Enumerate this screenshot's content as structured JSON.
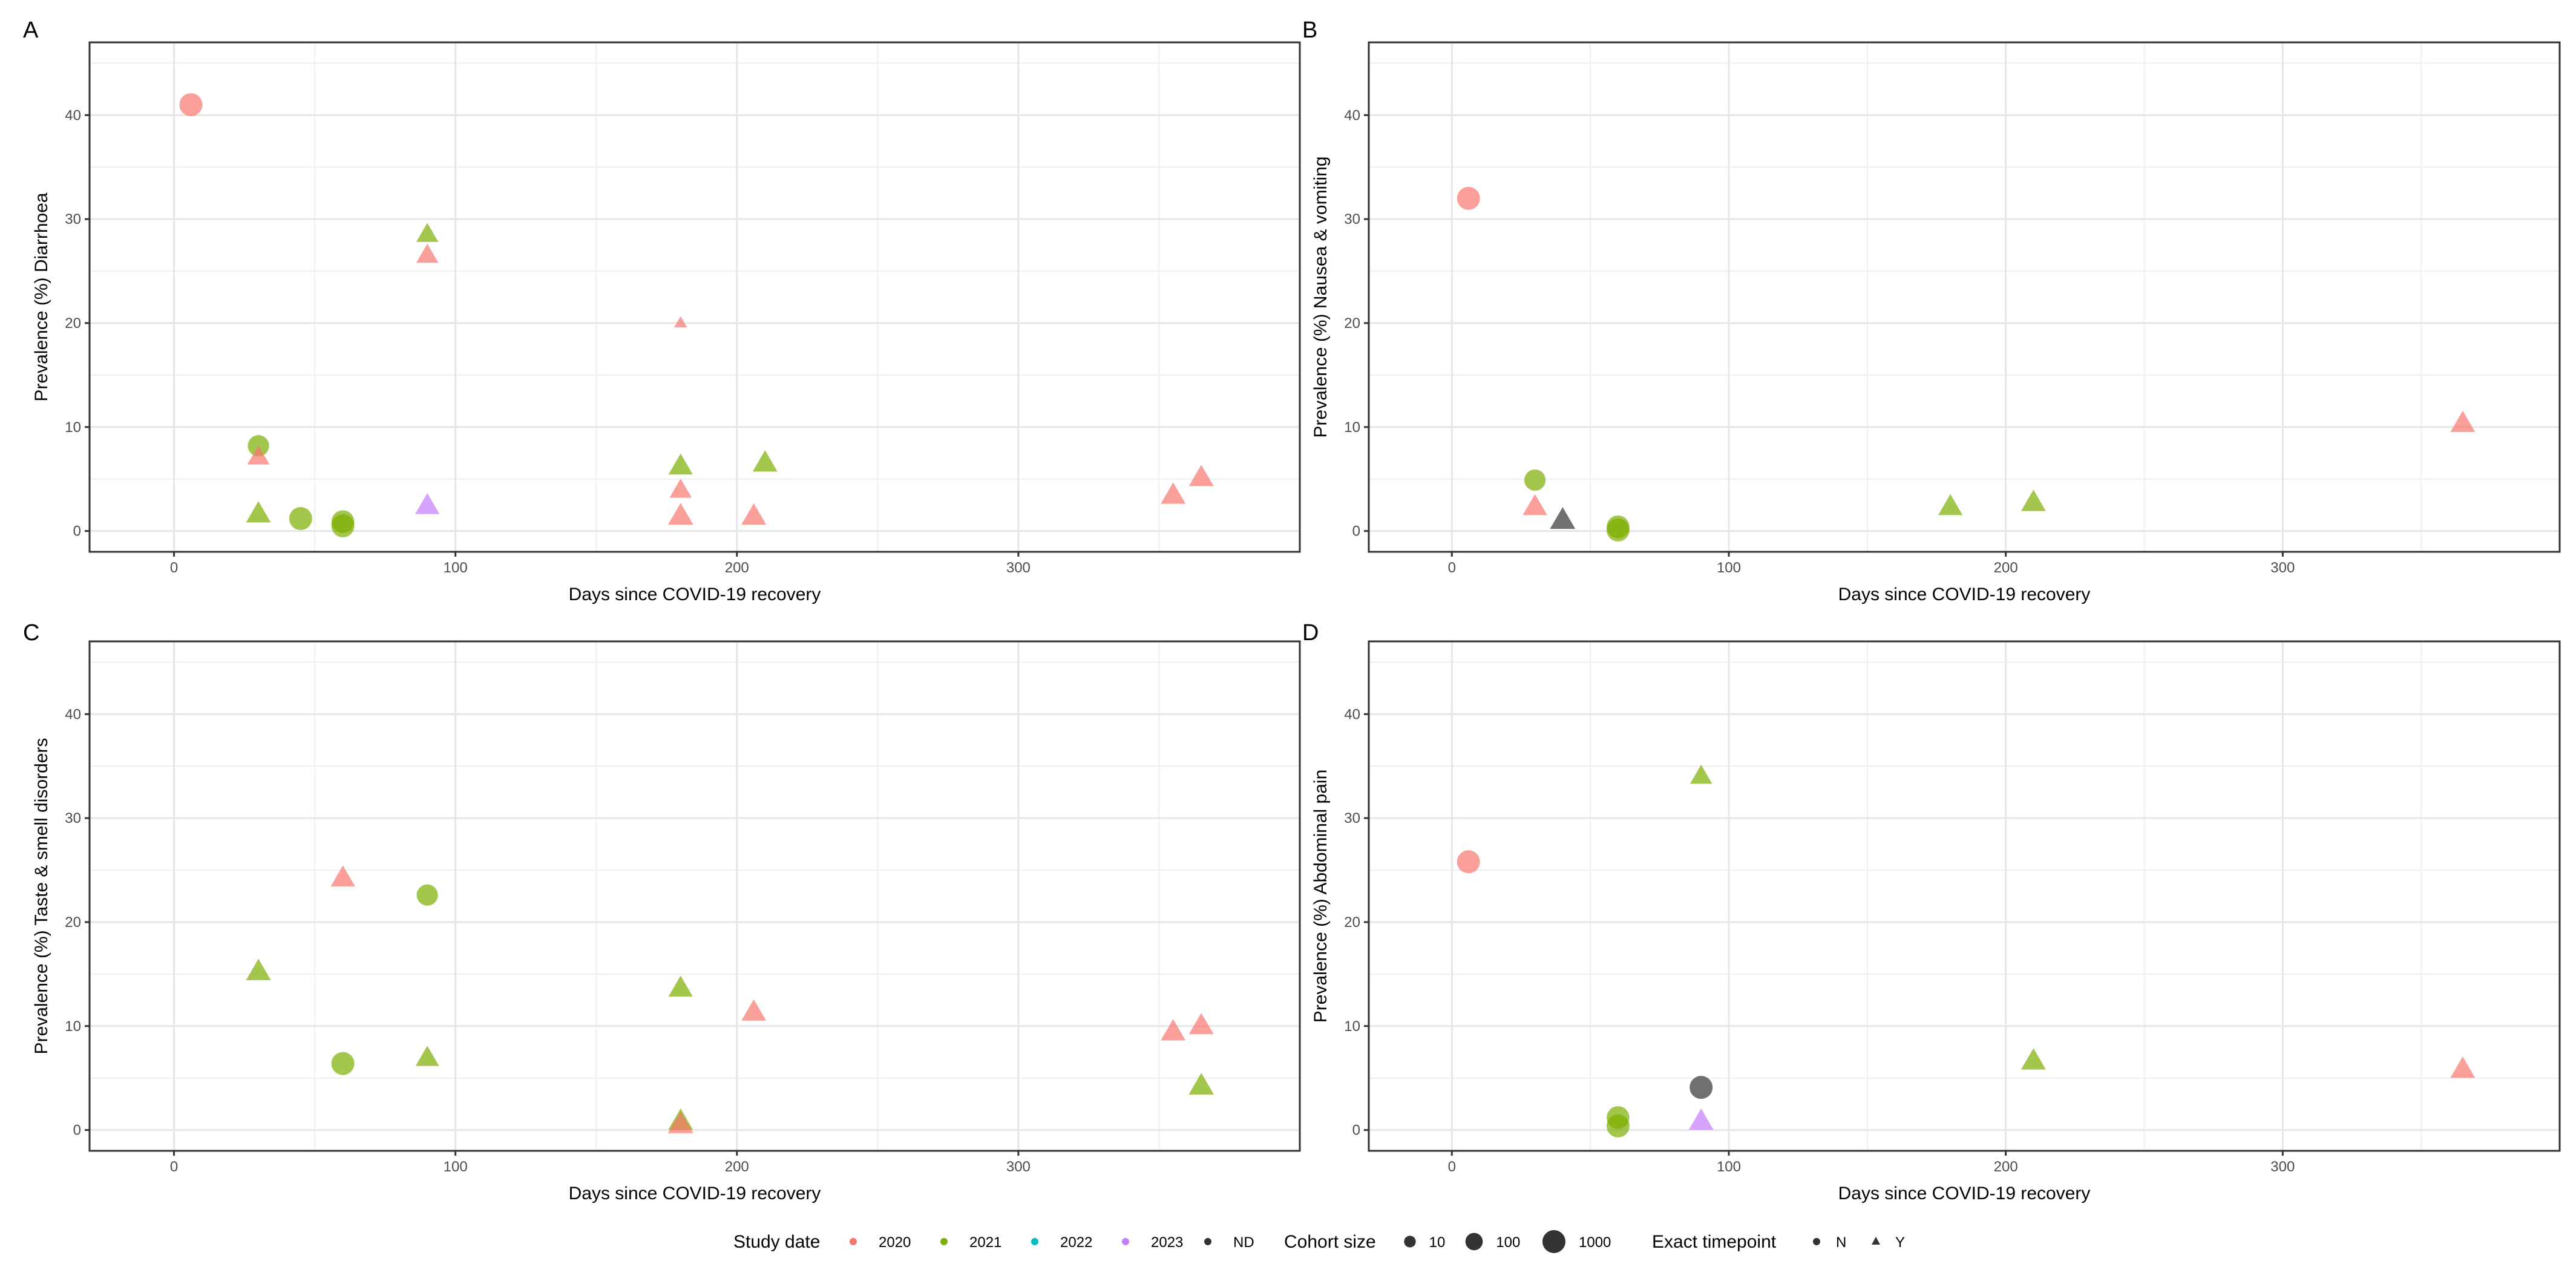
{
  "chart_data": [
    {
      "type": "scatter",
      "panel": "A",
      "xlabel": "Days since COVID-19 recovery",
      "ylabel": "Prevalence (%) Diarrhoea",
      "xlim": [
        -30,
        400
      ],
      "ylim": [
        -2,
        47
      ],
      "xticks": [
        0,
        100,
        200,
        300
      ],
      "yticks": [
        0,
        10,
        20,
        30,
        40
      ],
      "points": [
        {
          "x": 6,
          "y": 41.0,
          "year": "2020",
          "size": 1000,
          "exact": "N"
        },
        {
          "x": 30,
          "y": 8.2,
          "year": "2021",
          "size": 500,
          "exact": "N"
        },
        {
          "x": 30,
          "y": 7.1,
          "year": "2020",
          "size": 300,
          "exact": "Y"
        },
        {
          "x": 30,
          "y": 1.6,
          "year": "2021",
          "size": 800,
          "exact": "Y"
        },
        {
          "x": 45,
          "y": 1.2,
          "year": "2021",
          "size": 1000,
          "exact": "N"
        },
        {
          "x": 60,
          "y": 0.9,
          "year": "2021",
          "size": 900,
          "exact": "N"
        },
        {
          "x": 60,
          "y": 0.5,
          "year": "2021",
          "size": 1000,
          "exact": "N"
        },
        {
          "x": 90,
          "y": 28.5,
          "year": "2021",
          "size": 300,
          "exact": "Y"
        },
        {
          "x": 90,
          "y": 26.5,
          "year": "2020",
          "size": 300,
          "exact": "Y"
        },
        {
          "x": 90,
          "y": 2.4,
          "year": "2023",
          "size": 700,
          "exact": "Y"
        },
        {
          "x": 180,
          "y": 20.0,
          "year": "2020",
          "size": 10,
          "exact": "Y"
        },
        {
          "x": 180,
          "y": 6.2,
          "year": "2021",
          "size": 700,
          "exact": "Y"
        },
        {
          "x": 180,
          "y": 3.9,
          "year": "2020",
          "size": 300,
          "exact": "Y"
        },
        {
          "x": 180,
          "y": 1.4,
          "year": "2020",
          "size": 1000,
          "exact": "Y"
        },
        {
          "x": 206,
          "y": 1.4,
          "year": "2020",
          "size": 800,
          "exact": "Y"
        },
        {
          "x": 210,
          "y": 6.5,
          "year": "2021",
          "size": 800,
          "exact": "Y"
        },
        {
          "x": 355,
          "y": 3.4,
          "year": "2020",
          "size": 800,
          "exact": "Y"
        },
        {
          "x": 365,
          "y": 5.1,
          "year": "2020",
          "size": 800,
          "exact": "Y"
        }
      ]
    },
    {
      "type": "scatter",
      "panel": "B",
      "xlabel": "Days since COVID-19 recovery",
      "ylabel": "Prevalence (%) Nausea & vomiting",
      "xlim": [
        -30,
        400
      ],
      "ylim": [
        -2,
        47
      ],
      "xticks": [
        0,
        100,
        200,
        300
      ],
      "yticks": [
        0,
        10,
        20,
        30,
        40
      ],
      "points": [
        {
          "x": 6,
          "y": 32.0,
          "year": "2020",
          "size": 1000,
          "exact": "N"
        },
        {
          "x": 30,
          "y": 4.9,
          "year": "2021",
          "size": 500,
          "exact": "N"
        },
        {
          "x": 30,
          "y": 2.3,
          "year": "2020",
          "size": 700,
          "exact": "Y"
        },
        {
          "x": 40,
          "y": 1.0,
          "year": "ND",
          "size": 1000,
          "exact": "Y"
        },
        {
          "x": 60,
          "y": 0.4,
          "year": "2021",
          "size": 900,
          "exact": "N"
        },
        {
          "x": 60,
          "y": 0.1,
          "year": "2021",
          "size": 1000,
          "exact": "N"
        },
        {
          "x": 180,
          "y": 2.3,
          "year": "2021",
          "size": 700,
          "exact": "Y"
        },
        {
          "x": 210,
          "y": 2.7,
          "year": "2021",
          "size": 800,
          "exact": "Y"
        },
        {
          "x": 365,
          "y": 10.3,
          "year": "2020",
          "size": 800,
          "exact": "Y"
        }
      ]
    },
    {
      "type": "scatter",
      "panel": "C",
      "xlabel": "Days since COVID-19 recovery",
      "ylabel": "Prevalence (%) Taste & smell disorders",
      "xlim": [
        -30,
        400
      ],
      "ylim": [
        -2,
        47
      ],
      "xticks": [
        0,
        100,
        200,
        300
      ],
      "yticks": [
        0,
        10,
        20,
        30,
        40
      ],
      "points": [
        {
          "x": 30,
          "y": 15.2,
          "year": "2021",
          "size": 800,
          "exact": "Y"
        },
        {
          "x": 60,
          "y": 24.2,
          "year": "2020",
          "size": 700,
          "exact": "Y"
        },
        {
          "x": 60,
          "y": 6.4,
          "year": "2021",
          "size": 1000,
          "exact": "N"
        },
        {
          "x": 90,
          "y": 22.6,
          "year": "2021",
          "size": 500,
          "exact": "N"
        },
        {
          "x": 90,
          "y": 6.9,
          "year": "2021",
          "size": 500,
          "exact": "Y"
        },
        {
          "x": 180,
          "y": 13.6,
          "year": "2021",
          "size": 700,
          "exact": "Y"
        },
        {
          "x": 180,
          "y": 0.8,
          "year": "2021",
          "size": 800,
          "exact": "Y"
        },
        {
          "x": 180,
          "y": 0.5,
          "year": "2020",
          "size": 1000,
          "exact": "Y"
        },
        {
          "x": 206,
          "y": 11.3,
          "year": "2020",
          "size": 800,
          "exact": "Y"
        },
        {
          "x": 355,
          "y": 9.4,
          "year": "2020",
          "size": 800,
          "exact": "Y"
        },
        {
          "x": 365,
          "y": 10.0,
          "year": "2020",
          "size": 800,
          "exact": "Y"
        },
        {
          "x": 365,
          "y": 4.2,
          "year": "2021",
          "size": 1000,
          "exact": "Y"
        }
      ]
    },
    {
      "type": "scatter",
      "panel": "D",
      "xlabel": "Days since COVID-19 recovery",
      "ylabel": "Prevalence (%) Abdominal pain",
      "xlim": [
        -30,
        400
      ],
      "ylim": [
        -2,
        47
      ],
      "xticks": [
        0,
        100,
        200,
        300
      ],
      "yticks": [
        0,
        10,
        20,
        30,
        40
      ],
      "points": [
        {
          "x": 6,
          "y": 25.8,
          "year": "2020",
          "size": 1000,
          "exact": "N"
        },
        {
          "x": 60,
          "y": 1.2,
          "year": "2021",
          "size": 900,
          "exact": "N"
        },
        {
          "x": 60,
          "y": 0.4,
          "year": "2021",
          "size": 1000,
          "exact": "N"
        },
        {
          "x": 90,
          "y": 34.0,
          "year": "2021",
          "size": 300,
          "exact": "Y"
        },
        {
          "x": 90,
          "y": 4.1,
          "year": "ND",
          "size": 1000,
          "exact": "N"
        },
        {
          "x": 90,
          "y": 0.8,
          "year": "2023",
          "size": 800,
          "exact": "Y"
        },
        {
          "x": 210,
          "y": 6.6,
          "year": "2021",
          "size": 800,
          "exact": "Y"
        },
        {
          "x": 365,
          "y": 5.8,
          "year": "2020",
          "size": 800,
          "exact": "Y"
        }
      ]
    }
  ],
  "legend": {
    "study_date": {
      "title": "Study date",
      "items": [
        {
          "label": "2020",
          "color": "#F8766D"
        },
        {
          "label": "2021",
          "color": "#7CAE00"
        },
        {
          "label": "2022",
          "color": "#00BFC4"
        },
        {
          "label": "2023",
          "color": "#C77CFF"
        },
        {
          "label": "ND",
          "color": "#333333"
        }
      ]
    },
    "cohort_size": {
      "title": "Cohort size",
      "items": [
        {
          "label": "10",
          "value": 10
        },
        {
          "label": "100",
          "value": 100
        },
        {
          "label": "1000",
          "value": 1000
        }
      ]
    },
    "exact_timepoint": {
      "title": "Exact timepoint",
      "items": [
        {
          "label": "N",
          "shape": "circle"
        },
        {
          "label": "Y",
          "shape": "triangle"
        }
      ]
    }
  }
}
